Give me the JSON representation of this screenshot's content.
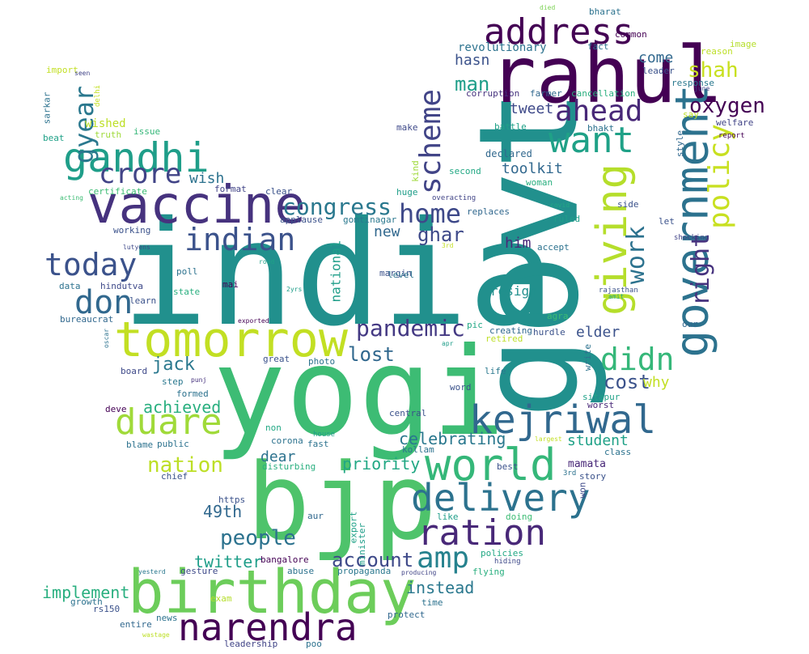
{
  "wordcloud": {
    "words": [
      {
        "text": "india",
        "color": "#21908d"
      },
      {
        "text": "govt",
        "color": "#21908d"
      },
      {
        "text": "yogi",
        "color": "#3dbc74"
      },
      {
        "text": "bjp",
        "color": "#4ec36b"
      },
      {
        "text": "birthday",
        "color": "#6ccd5a"
      },
      {
        "text": "rahul",
        "color": "#440154"
      },
      {
        "text": "tomorrow",
        "color": "#c2df23"
      },
      {
        "text": "vaccine",
        "color": "#46327e"
      },
      {
        "text": "government",
        "color": "#2c728e"
      },
      {
        "text": "address",
        "color": "#440154"
      },
      {
        "text": "narendra",
        "color": "#440154"
      },
      {
        "text": "world",
        "color": "#35b779"
      },
      {
        "text": "ration",
        "color": "#482878"
      },
      {
        "text": "delivery",
        "color": "#2c728e"
      },
      {
        "text": "kejriwal",
        "color": "#31688e"
      },
      {
        "text": "giving",
        "color": "#b5de2b"
      },
      {
        "text": "gandhi",
        "color": "#1f9e89"
      },
      {
        "text": "duare",
        "color": "#a0da39"
      },
      {
        "text": "scheme",
        "color": "#414487"
      },
      {
        "text": "want",
        "color": "#1fa187"
      },
      {
        "text": "indian",
        "color": "#3b528b"
      },
      {
        "text": "today",
        "color": "#3b528b"
      },
      {
        "text": "don",
        "color": "#31688e"
      },
      {
        "text": "didn",
        "color": "#35b779"
      },
      {
        "text": "ahead",
        "color": "#482878"
      },
      {
        "text": "policy",
        "color": "#c8e020"
      },
      {
        "text": "crore",
        "color": "#414487"
      },
      {
        "text": "amp",
        "color": "#26828e"
      },
      {
        "text": "gyear",
        "color": "#2a788e"
      },
      {
        "text": "work",
        "color": "#2c728e"
      },
      {
        "text": "right",
        "color": "#46327e"
      },
      {
        "text": "home",
        "color": "#3e4989"
      },
      {
        "text": "congress",
        "color": "#2a788e"
      },
      {
        "text": "pandemic",
        "color": "#443983"
      },
      {
        "text": "people",
        "color": "#2c728e"
      },
      {
        "text": "nation",
        "color": "#bddf26"
      },
      {
        "text": "oxygen",
        "color": "#440154"
      },
      {
        "text": "lost",
        "color": "#31688e"
      },
      {
        "text": "account",
        "color": "#3e4989"
      },
      {
        "text": "cost",
        "color": "#3b528b"
      },
      {
        "text": "shah",
        "color": "#c8e020"
      },
      {
        "text": "man",
        "color": "#1f9e89"
      },
      {
        "text": "ghar",
        "color": "#3e4989"
      },
      {
        "text": "jack",
        "color": "#2a788e"
      },
      {
        "text": "achieved",
        "color": "#29af7f"
      },
      {
        "text": "celebrating",
        "color": "#2a788e"
      },
      {
        "text": "priority",
        "color": "#22a884"
      },
      {
        "text": "implement",
        "color": "#29af7f"
      },
      {
        "text": "twitter",
        "color": "#1f9e89"
      },
      {
        "text": "student",
        "color": "#1fa187"
      },
      {
        "text": "49th",
        "color": "#31688e"
      },
      {
        "text": "instead",
        "color": "#2a788e"
      },
      {
        "text": "elder",
        "color": "#3b528b"
      },
      {
        "text": "come",
        "color": "#31688e"
      },
      {
        "text": "hasn",
        "color": "#3b528b"
      },
      {
        "text": "tweet",
        "color": "#3e4989"
      },
      {
        "text": "toolkit",
        "color": "#31688e"
      },
      {
        "text": "wish",
        "color": "#2c728e"
      },
      {
        "text": "new",
        "color": "#31688e"
      },
      {
        "text": "dear",
        "color": "#2c728e"
      },
      {
        "text": "revolutionary",
        "color": "#2c728e"
      },
      {
        "text": "him",
        "color": "#482878"
      },
      {
        "text": "resign",
        "color": "#21908d"
      },
      {
        "text": "national",
        "color": "#1f9e89"
      },
      {
        "text": "why",
        "color": "#c2df23"
      },
      {
        "text": "wished",
        "color": "#bddf26"
      },
      {
        "text": "mamata",
        "color": "#482878"
      },
      {
        "text": "kind",
        "color": "#9fda3a"
      },
      {
        "text": "declared",
        "color": "#31688e"
      },
      {
        "text": "bhakt",
        "color": "#2c728e"
      },
      {
        "text": "common",
        "color": "#440154"
      },
      {
        "text": "bharat",
        "color": "#2c728e"
      },
      {
        "text": "fact",
        "color": "#2c728e"
      },
      {
        "text": "leader",
        "color": "#3b528b"
      },
      {
        "text": "response",
        "color": "#2a788e"
      },
      {
        "text": "corruption",
        "color": "#46327e"
      },
      {
        "text": "farmer",
        "color": "#31688e"
      },
      {
        "text": "cancellation",
        "color": "#29af7f"
      },
      {
        "text": "battle",
        "color": "#1fa187"
      },
      {
        "text": "make",
        "color": "#3e4989"
      },
      {
        "text": "second",
        "color": "#22a884"
      },
      {
        "text": "huge",
        "color": "#1f9e89"
      },
      {
        "text": "overacting",
        "color": "#414487"
      },
      {
        "text": "woman",
        "color": "#29af7f"
      },
      {
        "text": "ruled",
        "color": "#1f9e89"
      },
      {
        "text": "accept",
        "color": "#2c728e"
      },
      {
        "text": "replaces",
        "color": "#31688e"
      },
      {
        "text": "applause",
        "color": "#3b528b"
      },
      {
        "text": "gomtinagar",
        "color": "#2a788e"
      },
      {
        "text": "clear",
        "color": "#3b528b"
      },
      {
        "text": "format",
        "color": "#414487"
      },
      {
        "text": "working",
        "color": "#3b528b"
      },
      {
        "text": "certificate",
        "color": "#3dbc74"
      },
      {
        "text": "acting",
        "color": "#3dbc74"
      },
      {
        "text": "poll",
        "color": "#2c728e"
      },
      {
        "text": "mai",
        "color": "#440154"
      },
      {
        "text": "data",
        "color": "#2c728e"
      },
      {
        "text": "hindutva",
        "color": "#3e4989"
      },
      {
        "text": "state",
        "color": "#29af7f"
      },
      {
        "text": "learn",
        "color": "#3b528b"
      },
      {
        "text": "bureaucrat",
        "color": "#31688e"
      },
      {
        "text": "board",
        "color": "#3e4989"
      },
      {
        "text": "step",
        "color": "#2a788e"
      },
      {
        "text": "formed",
        "color": "#2c728e"
      },
      {
        "text": "deve",
        "color": "#440154"
      },
      {
        "text": "blame",
        "color": "#2c728e"
      },
      {
        "text": "public",
        "color": "#2c728e"
      },
      {
        "text": "chief",
        "color": "#3b528b"
      },
      {
        "text": "https",
        "color": "#3b528b"
      },
      {
        "text": "aur",
        "color": "#31688e"
      },
      {
        "text": "bangalore",
        "color": "#440154"
      },
      {
        "text": "gesture",
        "color": "#3e4989"
      },
      {
        "text": "abuse",
        "color": "#2c728e"
      },
      {
        "text": "propaganda",
        "color": "#2a788e"
      },
      {
        "text": "producing",
        "color": "#414487"
      },
      {
        "text": "growth",
        "color": "#2c728e"
      },
      {
        "text": "rs150",
        "color": "#3b528b"
      },
      {
        "text": "exam",
        "color": "#b5de2b"
      },
      {
        "text": "entire",
        "color": "#31688e"
      },
      {
        "text": "news",
        "color": "#2c728e"
      },
      {
        "text": "protect",
        "color": "#31688e"
      },
      {
        "text": "time",
        "color": "#2c728e"
      },
      {
        "text": "leadership",
        "color": "#414487"
      },
      {
        "text": "poo",
        "color": "#2c728e"
      },
      {
        "text": "flying",
        "color": "#29af7f"
      },
      {
        "text": "policies",
        "color": "#22a884"
      },
      {
        "text": "hiding",
        "color": "#3e4989"
      },
      {
        "text": "doing",
        "color": "#3dbc74"
      },
      {
        "text": "like",
        "color": "#1f9e89"
      },
      {
        "text": "export",
        "color": "#1fa187"
      },
      {
        "text": "minister",
        "color": "#1f9e89"
      },
      {
        "text": "fast",
        "color": "#2c728e"
      },
      {
        "text": "corona",
        "color": "#2c728e"
      },
      {
        "text": "disturbing",
        "color": "#29af7f"
      },
      {
        "text": "house",
        "color": "#1f9e89"
      },
      {
        "text": "non",
        "color": "#22a884"
      },
      {
        "text": "central",
        "color": "#3b528b"
      },
      {
        "text": "kollam",
        "color": "#2c728e"
      },
      {
        "text": "best",
        "color": "#3b528b"
      },
      {
        "text": "story",
        "color": "#3b528b"
      },
      {
        "text": "class",
        "color": "#2c728e"
      },
      {
        "text": "won",
        "color": "#3e4989"
      },
      {
        "text": "largest",
        "color": "#c2df23"
      },
      {
        "text": "3rd",
        "color": "#2c728e"
      },
      {
        "text": "word",
        "color": "#3b528b"
      },
      {
        "text": "life",
        "color": "#2a788e"
      },
      {
        "text": "photo",
        "color": "#2c728e"
      },
      {
        "text": "great",
        "color": "#3b528b"
      },
      {
        "text": "sitapur",
        "color": "#1fa187"
      },
      {
        "text": "worst",
        "color": "#482878"
      },
      {
        "text": "hurdle",
        "color": "#3b528b"
      },
      {
        "text": "creating",
        "color": "#31688e"
      },
      {
        "text": "retired",
        "color": "#bddf26"
      },
      {
        "text": "write",
        "color": "#2c728e"
      },
      {
        "text": "agra",
        "color": "#3dbc74"
      },
      {
        "text": "our",
        "color": "#31688e"
      },
      {
        "text": "rajasthan",
        "color": "#3b528b"
      },
      {
        "text": "amit",
        "color": "#22a884"
      },
      {
        "text": "shocking",
        "color": "#414487"
      },
      {
        "text": "let",
        "color": "#3b528b"
      },
      {
        "text": "side",
        "color": "#3b528b"
      },
      {
        "text": "covid",
        "color": "#22a884"
      },
      {
        "text": "style",
        "color": "#31688e"
      },
      {
        "text": "welfare",
        "color": "#414487"
      },
      {
        "text": "report",
        "color": "#440154"
      },
      {
        "text": "say",
        "color": "#bddf26"
      },
      {
        "text": "june",
        "color": "#414487"
      },
      {
        "text": "reason",
        "color": "#bddf26"
      },
      {
        "text": "image",
        "color": "#b5de2b"
      },
      {
        "text": "died",
        "color": "#7ad151"
      },
      {
        "text": "truth",
        "color": "#9fda3a"
      },
      {
        "text": "delhi",
        "color": "#c2df23"
      },
      {
        "text": "import",
        "color": "#c2df23"
      },
      {
        "text": "seen",
        "color": "#414487"
      },
      {
        "text": "sarkar",
        "color": "#2c728e"
      },
      {
        "text": "beat",
        "color": "#1fa187"
      },
      {
        "text": "issue",
        "color": "#35b779"
      },
      {
        "text": "road",
        "color": "#1fa187"
      },
      {
        "text": "exported",
        "color": "#440154"
      },
      {
        "text": "2yrs",
        "color": "#1f9e89"
      },
      {
        "text": "3rd",
        "color": "#c2df23"
      },
      {
        "text": "lutyens",
        "color": "#3e4989"
      },
      {
        "text": "punj",
        "color": "#46327e"
      },
      {
        "text": "apr",
        "color": "#1f9e89"
      },
      {
        "text": "pic",
        "color": "#22a884"
      },
      {
        "text": "margin",
        "color": "#3b528b"
      },
      {
        "text": "level",
        "color": "#2c728e"
      },
      {
        "text": "oscar",
        "color": "#2c728e"
      },
      {
        "text": "yesterd",
        "color": "#2a788e"
      },
      {
        "text": "wastage",
        "color": "#bddf26"
      }
    ]
  }
}
